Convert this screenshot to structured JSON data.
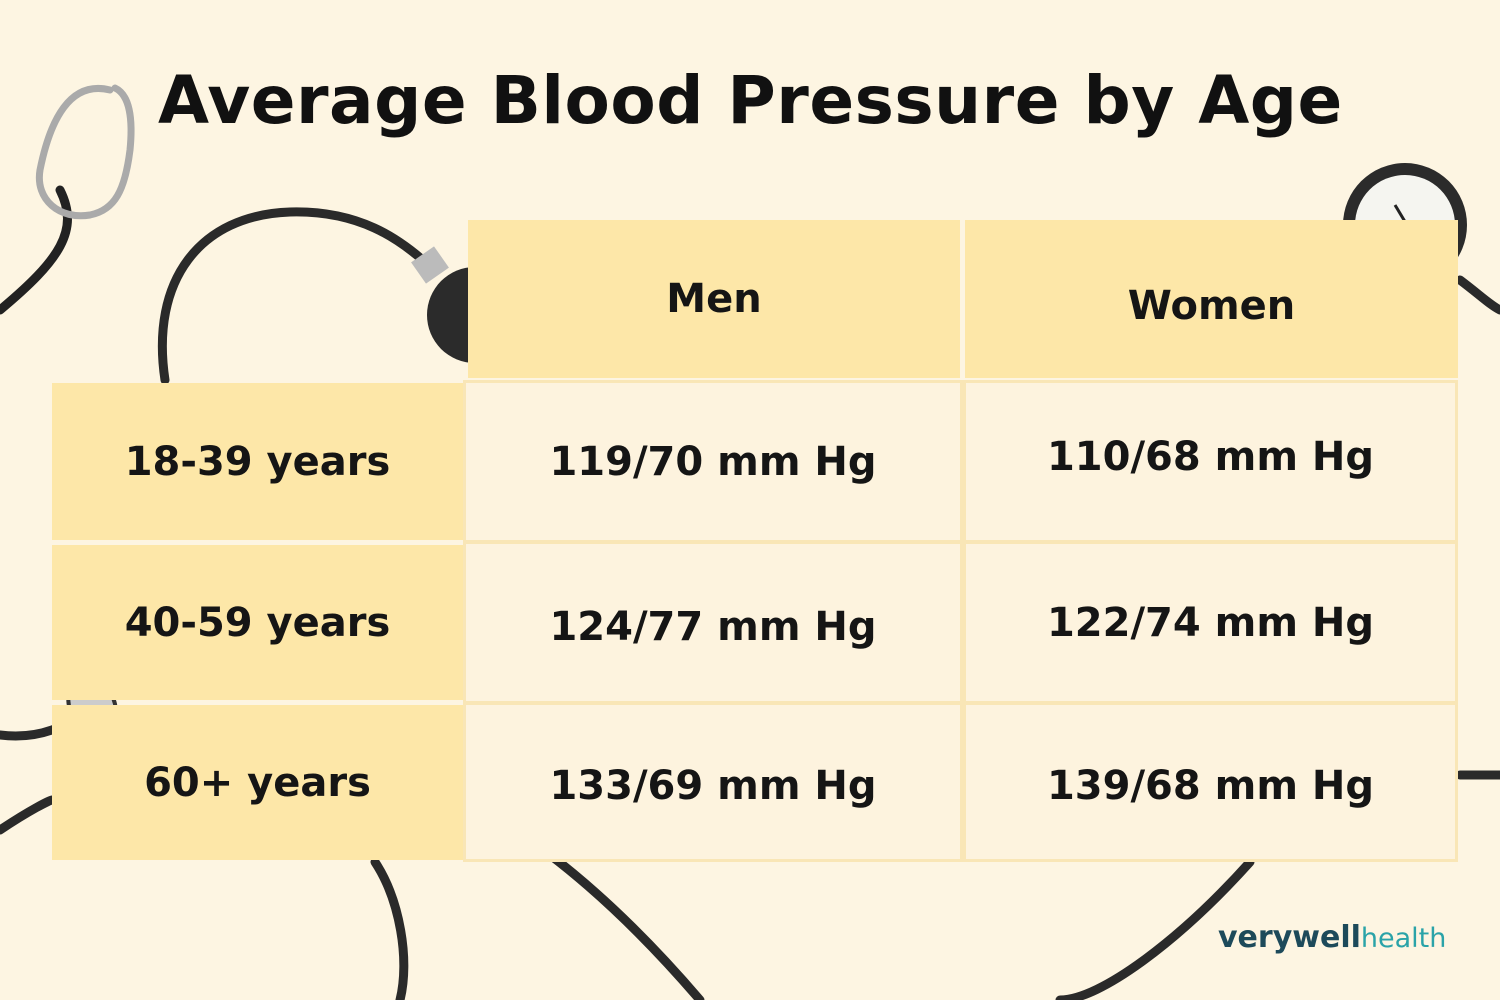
{
  "title": "Average Blood Pressure by Age",
  "table": {
    "header": [
      "Men",
      "Women"
    ],
    "rows": [
      [
        "18-39 years",
        "119/70 mm Hg",
        "110/68 mm Hg"
      ],
      [
        "40-59 years",
        "124/77 mm Hg",
        "122/74 mm Hg"
      ],
      [
        "60+ years",
        "133/69 mm Hg",
        "139/68 mm Hg"
      ]
    ]
  },
  "logo": {
    "brand": "verywell",
    "sub": "health"
  }
}
